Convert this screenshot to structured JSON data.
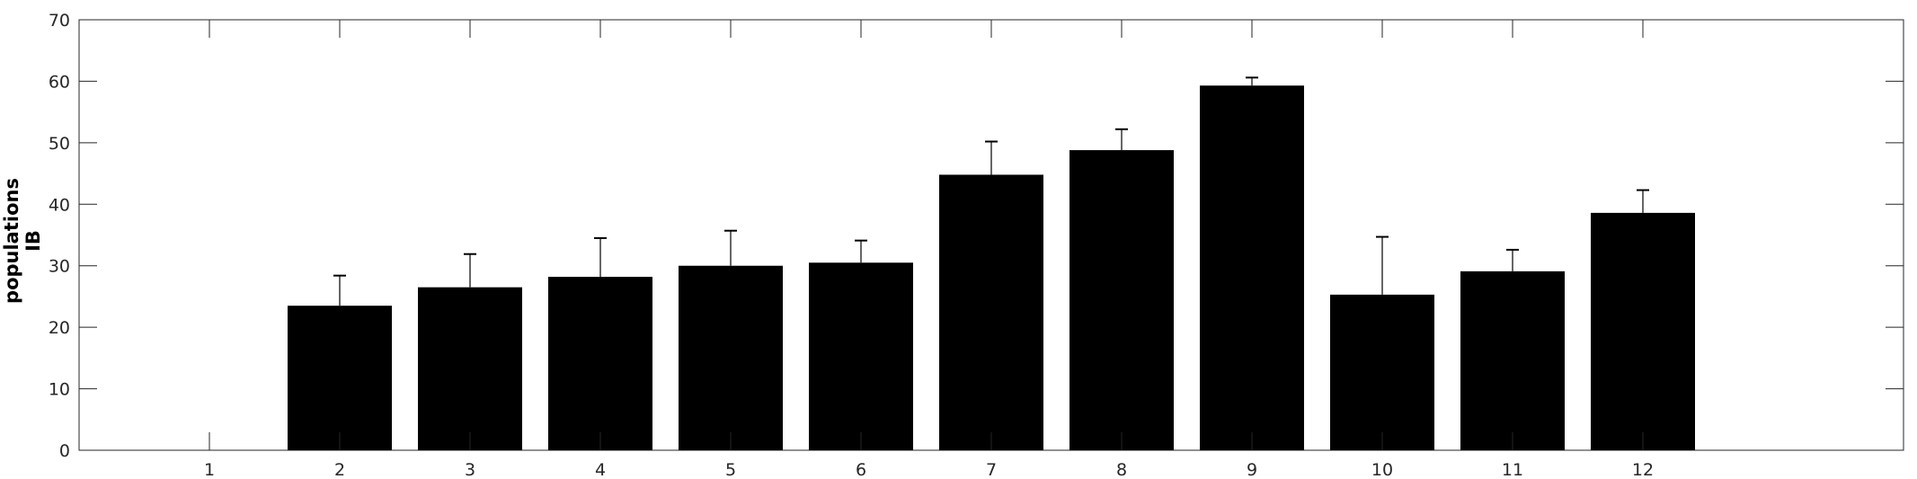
{
  "chart_data": {
    "type": "bar",
    "categories": [
      "1",
      "2",
      "3",
      "4",
      "5",
      "6",
      "7",
      "8",
      "9",
      "10",
      "11",
      "12"
    ],
    "values": [
      0,
      23.5,
      26.5,
      28.2,
      30.0,
      30.5,
      44.8,
      48.8,
      59.3,
      25.3,
      29.1,
      38.6
    ],
    "errors": [
      0,
      4.9,
      5.4,
      6.3,
      5.7,
      3.6,
      5.4,
      3.4,
      1.3,
      9.4,
      3.5,
      3.7
    ],
    "ylabel_lines": [
      "populations",
      "IB"
    ],
    "ylim": [
      0,
      70
    ],
    "yticks": [
      0,
      10,
      20,
      30,
      40,
      50,
      60,
      70
    ],
    "xlim": [
      0,
      14
    ],
    "bar_color": "#000000",
    "grid": false,
    "legend": "none"
  }
}
